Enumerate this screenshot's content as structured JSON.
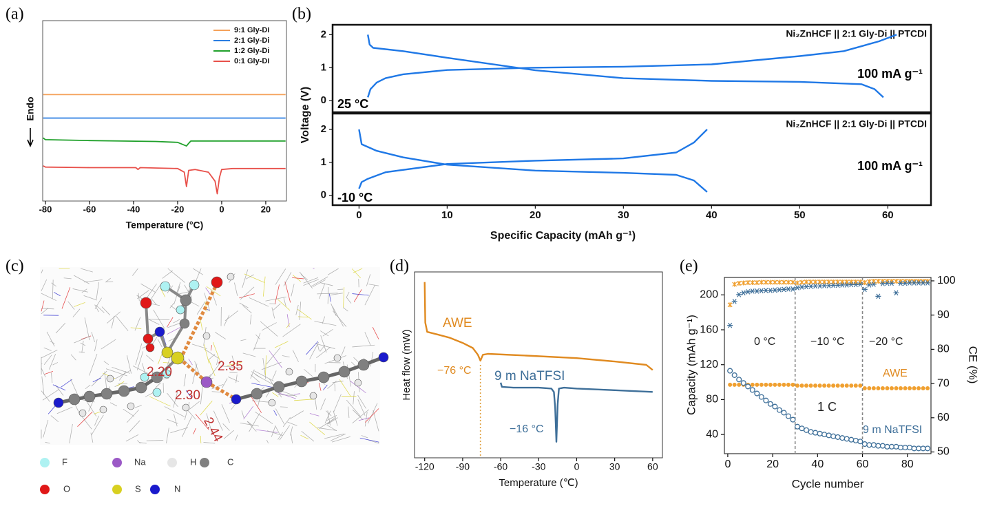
{
  "panel_labels": [
    "(a)",
    "(b)",
    "(c)",
    "(d)",
    "(e)"
  ],
  "molecule": {
    "distances": [
      "2.20",
      "2.35",
      "2.30",
      "2.44"
    ],
    "legend": [
      {
        "label": "F",
        "color": "#aef2f2"
      },
      {
        "label": "Na",
        "color": "#9b59c6"
      },
      {
        "label": "H",
        "color": "#e6e6e6"
      },
      {
        "label": "C",
        "color": "#808080"
      },
      {
        "label": "O",
        "color": "#e01818"
      },
      {
        "label": "S",
        "color": "#d8d020"
      },
      {
        "label": "N",
        "color": "#1a1acc"
      }
    ]
  },
  "chart_data": [
    {
      "type": "line",
      "xlabel": "Temperature (°C)",
      "ylabel": "Endo",
      "xlim": [
        -81.25,
        29.4
      ],
      "ylim": [
        0,
        10
      ],
      "xticks": [
        -80,
        -60,
        -40,
        -20,
        0,
        20
      ],
      "legend": "upper right",
      "series": [
        {
          "name": "9:1 Gly-Di",
          "color": "#f5a15a",
          "x": [
            -81,
            29
          ],
          "values": [
            5.9,
            5.9
          ]
        },
        {
          "name": "2:1 Gly-Di",
          "color": "#2a7de1",
          "x": [
            -81,
            29
          ],
          "values": [
            4.6,
            4.6
          ]
        },
        {
          "name": "1:2 Gly-Di",
          "color": "#1fa02a",
          "x": [
            -81,
            -80,
            -60,
            -30,
            -20,
            -16,
            -15,
            -14,
            0,
            29
          ],
          "values": [
            3.5,
            3.4,
            3.35,
            3.3,
            3.25,
            3.05,
            3.2,
            3.33,
            3.33,
            3.33
          ]
        },
        {
          "name": "0:1 Gly-Di",
          "color": "#e8504a",
          "x": [
            -81,
            -80,
            -60,
            -39,
            -38,
            -37,
            -20,
            -17,
            -16,
            -15,
            -12,
            -6,
            -3,
            -2,
            -1,
            0,
            5,
            29
          ],
          "values": [
            1.95,
            1.88,
            1.85,
            1.85,
            1.75,
            1.85,
            1.8,
            1.6,
            0.8,
            1.7,
            1.75,
            1.6,
            1.1,
            0.4,
            1.3,
            1.75,
            1.8,
            1.8
          ]
        }
      ]
    },
    {
      "type": "line",
      "title": "Ni₂ZnHCF || 2:1 Gly-Di || PTCDI",
      "ylabel": "Voltage (V)",
      "xlim": [
        -3,
        64.9
      ],
      "ylim": [
        -0.35,
        2.3
      ],
      "yticks": [
        0,
        1,
        2
      ],
      "annotations": [
        {
          "text": "100 mA g⁻¹",
          "color": "#000000"
        },
        {
          "text": "25 °C",
          "color": "#000000"
        }
      ],
      "series": [
        {
          "color": "#1f78e6",
          "x": [
            1,
            1.3,
            2,
            3,
            5,
            10,
            20,
            30,
            40,
            50,
            55,
            57,
            59,
            61
          ],
          "values": [
            0.1,
            0.35,
            0.55,
            0.68,
            0.8,
            0.93,
            1.0,
            1.03,
            1.1,
            1.35,
            1.5,
            1.65,
            1.8,
            2.0
          ]
        },
        {
          "color": "#1f78e6",
          "x": [
            1,
            1.2,
            1.6,
            5,
            10,
            20,
            30,
            40,
            50,
            57,
            58.5,
            59.5
          ],
          "values": [
            2.0,
            1.7,
            1.6,
            1.5,
            1.3,
            0.92,
            0.68,
            0.6,
            0.57,
            0.5,
            0.35,
            0.1
          ]
        }
      ]
    },
    {
      "type": "line",
      "title": "Ni₂ZnHCF || 2:1 Gly-Di || PTCDI",
      "xlabel": "Specific Capacity (mAh g⁻¹)",
      "xlim": [
        -3,
        64.9
      ],
      "ylim": [
        -0.3,
        2.48
      ],
      "xticks": [
        0,
        10,
        20,
        30,
        40,
        50,
        60
      ],
      "yticks": [
        0,
        1,
        2
      ],
      "annotations": [
        {
          "text": "100 mA g⁻¹",
          "color": "#000000"
        },
        {
          "text": "-10 °C",
          "color": "#000000"
        }
      ],
      "series": [
        {
          "color": "#1f78e6",
          "x": [
            0,
            0.3,
            1,
            3,
            10,
            20,
            30,
            36,
            38,
            39.5
          ],
          "values": [
            0.2,
            0.4,
            0.5,
            0.7,
            0.95,
            1.05,
            1.12,
            1.3,
            1.6,
            2.0
          ]
        },
        {
          "color": "#1f78e6",
          "x": [
            0,
            0.3,
            2,
            5,
            10,
            20,
            30,
            36,
            38,
            39.5
          ],
          "values": [
            2.0,
            1.55,
            1.35,
            1.15,
            0.93,
            0.75,
            0.68,
            0.62,
            0.45,
            0.1
          ]
        }
      ]
    },
    {
      "type": "line",
      "xlabel": "Temperature (℃)",
      "ylabel": "Heat flow (mW)",
      "xlim": [
        -128,
        67.7
      ],
      "ylim": [
        0,
        11
      ],
      "xticks": [
        -120,
        -90,
        -60,
        -30,
        0,
        30,
        60
      ],
      "vlines": [
        -76
      ],
      "vline_color": "#e0a040",
      "annotations": [
        {
          "text": "AWE",
          "color": "#e08a20"
        },
        {
          "text": "−76 °C",
          "color": "#e08a20"
        },
        {
          "text": "9 m NaTFSI",
          "color": "#3e6f99"
        },
        {
          "text": "−16 °C",
          "color": "#3e6f99"
        }
      ],
      "series": [
        {
          "color": "#e08a20",
          "x": [
            -120,
            -119.5,
            -118,
            -110,
            -100,
            -90,
            -82,
            -78,
            -76,
            -74,
            -70,
            -40,
            0,
            30,
            55,
            60
          ],
          "values": [
            10.4,
            8.0,
            7.45,
            7.3,
            7.1,
            6.8,
            6.5,
            6.1,
            5.75,
            6.1,
            6.15,
            6.05,
            5.9,
            5.7,
            5.5,
            5.2
          ]
        },
        {
          "color": "#3e6f99",
          "x": [
            -60,
            -59,
            -50,
            -30,
            -20,
            -18,
            -17,
            -16,
            -15,
            -14,
            -10,
            0,
            30,
            60
          ],
          "values": [
            4.45,
            4.2,
            4.15,
            4.15,
            4.1,
            3.9,
            3.0,
            0.95,
            3.2,
            4.1,
            4.15,
            4.1,
            4.0,
            3.9
          ]
        }
      ]
    },
    {
      "type": "scatter",
      "xlabel": "Cycle number",
      "ylabel": "Capacity (mAh g⁻¹)",
      "y2label": "CE (%)",
      "xlim": [
        -1.5,
        90.5
      ],
      "ylim": [
        18,
        220
      ],
      "y2lim": [
        49.5,
        101
      ],
      "xticks": [
        0,
        20,
        40,
        60,
        80
      ],
      "yticks": [
        40,
        80,
        120,
        160,
        200
      ],
      "y2ticks": [
        50,
        60,
        70,
        80,
        90,
        100
      ],
      "vlines": [
        30,
        60
      ],
      "vline_color": "#888888",
      "annotations": [
        {
          "text": "0 °C",
          "color": "#222222"
        },
        {
          "text": "−10 °C",
          "color": "#222222"
        },
        {
          "text": "−20 °C",
          "color": "#222222"
        },
        {
          "text": "AWE",
          "color": "#e08a20"
        },
        {
          "text": "1 C",
          "color": "#222222"
        },
        {
          "text": "9 m NaTFSI",
          "color": "#3e6f99"
        }
      ],
      "x": [
        1,
        3,
        5,
        7,
        9,
        11,
        13,
        15,
        17,
        19,
        21,
        23,
        25,
        27,
        29,
        31,
        33,
        35,
        37,
        39,
        41,
        43,
        45,
        47,
        49,
        51,
        53,
        55,
        57,
        59,
        61,
        63,
        65,
        67,
        69,
        71,
        73,
        75,
        77,
        79,
        81,
        83,
        85,
        87,
        89
      ],
      "series": [
        {
          "color": "#f0a030",
          "marker": "x",
          "axis": "y2",
          "values": [
            93,
            99,
            99.3,
            99.4,
            99.5,
            99.5,
            99.5,
            99.6,
            99.6,
            99.6,
            99.6,
            99.6,
            99.6,
            99.6,
            99.6,
            99.4,
            99.6,
            99.7,
            99.7,
            99.7,
            99.7,
            99.7,
            99.7,
            99.7,
            99.7,
            99.7,
            99.7,
            99.7,
            99.7,
            99.7,
            99.5,
            99.8,
            99.9,
            99.9,
            99.9,
            99.9,
            99.9,
            99.9,
            99.9,
            99.9,
            99.9,
            99.9,
            99.9,
            99.9,
            99.9
          ]
        },
        {
          "color": "#3e6f99",
          "marker": "*",
          "axis": "y2",
          "values": [
            87,
            94,
            96,
            96.5,
            96.8,
            97,
            97,
            97.1,
            97.2,
            97.2,
            97.3,
            97.4,
            97.5,
            97.6,
            97.6,
            98,
            98.2,
            98.3,
            98.4,
            98.5,
            98.5,
            98.6,
            98.6,
            98.7,
            98.7,
            98.8,
            98.8,
            98.9,
            98.9,
            99,
            97.5,
            98.8,
            99,
            95.5,
            99.2,
            99.3,
            99.3,
            96.5,
            99.3,
            99.3,
            99.4,
            99.4,
            99.4,
            99.4,
            99.4
          ]
        },
        {
          "color": "#f0a030",
          "marker": ".",
          "values": [
            97,
            97,
            97,
            97,
            97,
            97,
            97,
            97,
            97,
            97,
            97,
            97,
            97,
            97,
            97,
            96,
            96,
            96,
            96,
            96,
            96,
            96,
            96,
            96,
            96,
            96,
            96,
            96,
            96,
            96,
            93,
            93,
            93,
            93,
            93,
            93,
            93,
            93,
            93,
            93,
            93,
            93,
            93,
            93,
            93
          ]
        },
        {
          "color": "#3e6f99",
          "marker": "o",
          "values": [
            113,
            108,
            103,
            99,
            95,
            91,
            87,
            83,
            79,
            75,
            72,
            68,
            65,
            61,
            57,
            49,
            47,
            45,
            43,
            42,
            41,
            40,
            39,
            38,
            37,
            36,
            35,
            34,
            33,
            32,
            29,
            28,
            28,
            27,
            27,
            26,
            26,
            26,
            25,
            25,
            25,
            24,
            24,
            24,
            24
          ]
        }
      ]
    }
  ]
}
